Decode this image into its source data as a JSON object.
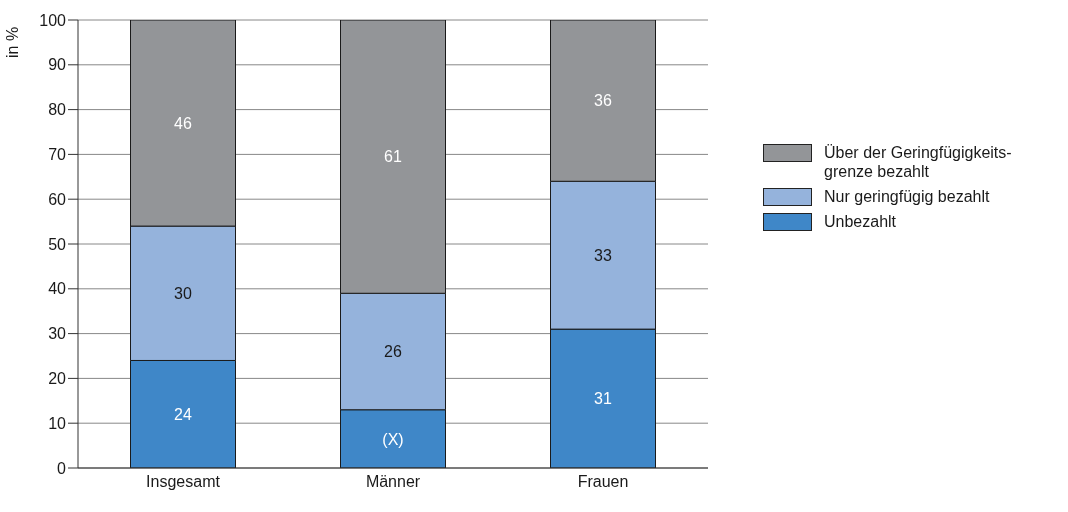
{
  "chart_data": {
    "type": "bar",
    "stacked": true,
    "categories": [
      "Insgesamt",
      "Männer",
      "Frauen"
    ],
    "ylabel": "in %",
    "ylim": [
      0,
      100
    ],
    "yticks": [
      0,
      10,
      20,
      30,
      40,
      50,
      60,
      70,
      80,
      90,
      100
    ],
    "grid": "y",
    "legend": "right",
    "series": [
      {
        "name": "Unbezahlt",
        "color": "#3f87c8",
        "values": [
          24,
          13,
          31
        ],
        "value_labels": [
          "24",
          "(X)",
          "31"
        ]
      },
      {
        "name": "Nur geringfügig bezahlt",
        "color": "#95b3dc",
        "values": [
          30,
          26,
          33
        ],
        "value_labels": [
          "30",
          "26",
          "33"
        ]
      },
      {
        "name": "Über der Geringfügigkeits-grenze bezahlt",
        "color": "#939598",
        "values": [
          46,
          61,
          36
        ],
        "value_labels": [
          "46",
          "61",
          "36"
        ]
      }
    ]
  }
}
